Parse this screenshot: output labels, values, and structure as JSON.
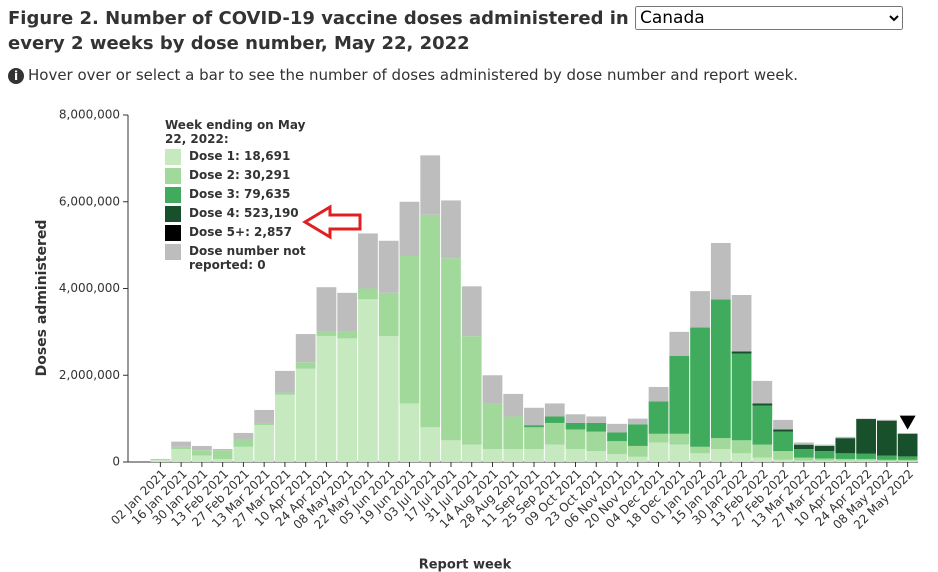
{
  "header": {
    "title_before": "Figure 2. Number of COVID-19 vaccine doses administered in",
    "selected_region": "Canada",
    "title_after": "every 2 weeks by dose number, May 22, 2022",
    "info": "Hover over or select a bar to see the number of doses administered by dose number and report week."
  },
  "chart_data": {
    "type": "bar",
    "stacked": true,
    "xlabel": "Report week",
    "ylabel": "Doses administered",
    "categories": [
      "02 Jan 2021",
      "16 Jan 2021",
      "30 Jan 2021",
      "13 Feb 2021",
      "27 Feb 2021",
      "13 Mar 2021",
      "27 Mar 2021",
      "10 Apr 2021",
      "24 Apr 2021",
      "08 May 2021",
      "22 May 2021",
      "05 Jun 2021",
      "19 Jun 2021",
      "03 Jul 2021",
      "17 Jul 2021",
      "31 Jul 2021",
      "14 Aug 2021",
      "28 Aug 2021",
      "11 Sep 2021",
      "25 Sep 2021",
      "09 Oct 2021",
      "23 Oct 2021",
      "06 Nov 2021",
      "20 Nov 2021",
      "04 Dec 2021",
      "18 Dec 2021",
      "01 Jan 2022",
      "15 Jan 2022",
      "30 Jan 2022",
      "13 Feb 2022",
      "27 Feb 2022",
      "13 Mar 2022",
      "27 Mar 2022",
      "10 Apr 2022",
      "24 Apr 2022",
      "08 May 2022",
      "22 May 2022"
    ],
    "series": [
      {
        "name": "Dose 1",
        "color": "#c7e9c0",
        "values": [
          50000,
          300000,
          150000,
          70000,
          350000,
          850000,
          1550000,
          2150000,
          2900000,
          2850000,
          3750000,
          2900000,
          1350000,
          800000,
          500000,
          400000,
          300000,
          300000,
          300000,
          400000,
          300000,
          250000,
          180000,
          120000,
          450000,
          400000,
          200000,
          300000,
          200000,
          100000,
          50000,
          30000,
          30000,
          30000,
          30000,
          20000,
          18691
        ]
      },
      {
        "name": "Dose 2",
        "color": "#a1d99b",
        "values": [
          0,
          50000,
          120000,
          200000,
          180000,
          50000,
          50000,
          150000,
          100000,
          150000,
          250000,
          1000000,
          3400000,
          4900000,
          4200000,
          2500000,
          1050000,
          750000,
          500000,
          500000,
          450000,
          450000,
          300000,
          250000,
          200000,
          250000,
          150000,
          250000,
          300000,
          300000,
          200000,
          70000,
          50000,
          40000,
          40000,
          30000,
          30291
        ]
      },
      {
        "name": "Dose 3",
        "color": "#41ab5d",
        "values": [
          0,
          0,
          0,
          0,
          0,
          0,
          0,
          0,
          0,
          0,
          0,
          0,
          0,
          0,
          0,
          0,
          0,
          0,
          50000,
          150000,
          150000,
          200000,
          200000,
          500000,
          750000,
          1800000,
          2750000,
          3200000,
          2000000,
          900000,
          450000,
          200000,
          170000,
          130000,
          120000,
          100000,
          79635
        ]
      },
      {
        "name": "Dose 4",
        "color": "#17502b",
        "values": [
          0,
          0,
          0,
          0,
          0,
          0,
          0,
          0,
          0,
          0,
          0,
          0,
          0,
          0,
          0,
          0,
          0,
          0,
          0,
          0,
          0,
          0,
          0,
          0,
          0,
          0,
          0,
          0,
          50000,
          50000,
          50000,
          100000,
          120000,
          350000,
          800000,
          800000,
          523190
        ]
      },
      {
        "name": "Dose 5+",
        "color": "#000000",
        "values": [
          0,
          0,
          0,
          0,
          0,
          0,
          0,
          0,
          0,
          0,
          0,
          0,
          0,
          0,
          0,
          0,
          0,
          0,
          0,
          0,
          0,
          0,
          0,
          0,
          0,
          0,
          0,
          0,
          0,
          0,
          0,
          0,
          0,
          0,
          2000,
          3000,
          2857
        ]
      },
      {
        "name": "Dose number not reported",
        "color": "#bdbdbd",
        "values": [
          20000,
          120000,
          100000,
          30000,
          140000,
          300000,
          500000,
          650000,
          1030000,
          900000,
          1270000,
          1200000,
          1250000,
          1370000,
          1330000,
          1150000,
          650000,
          520000,
          400000,
          300000,
          200000,
          150000,
          200000,
          130000,
          330000,
          550000,
          840000,
          1300000,
          1300000,
          520000,
          220000,
          50000,
          30000,
          30000,
          10000,
          20000,
          0
        ]
      }
    ],
    "ylim": [
      0,
      8000000
    ],
    "yticks": [
      {
        "value": 0,
        "label": "0"
      },
      {
        "value": 2000000,
        "label": "2,000,000"
      },
      {
        "value": 4000000,
        "label": "4,000,000"
      },
      {
        "value": 6000000,
        "label": "6,000,000"
      },
      {
        "value": 8000000,
        "label": "8,000,000"
      }
    ],
    "grid": false,
    "legend": {
      "title": "Week ending on May 22, 2022:",
      "labels": [
        "Dose 1: 18,691",
        "Dose 2: 30,291",
        "Dose 3: 79,635",
        "Dose 4: 523,190",
        "Dose 5+: 2,857",
        "Dose number not reported: 0"
      ]
    }
  }
}
